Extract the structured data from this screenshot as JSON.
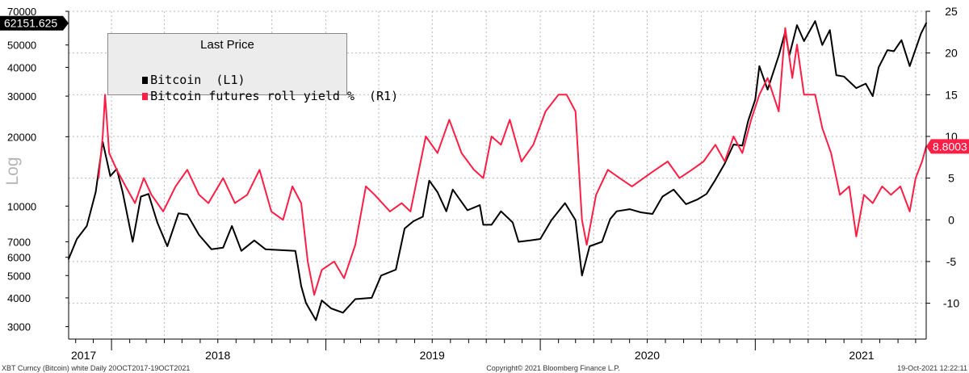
{
  "chart_data": {
    "type": "line",
    "title": "Last Price",
    "legend_position": "top-left",
    "grid": true,
    "y_left": {
      "label": "Log",
      "scale": "log",
      "range": [
        2650,
        70000
      ],
      "ticks": [
        3000,
        4000,
        5000,
        6000,
        7000,
        10000,
        20000,
        30000,
        40000,
        50000,
        70000
      ],
      "last_value_label": "62151.625"
    },
    "y_right": {
      "scale": "linear",
      "range": [
        -14.3,
        25
      ],
      "ticks": [
        -10,
        -5,
        0,
        5,
        10,
        15,
        20,
        25
      ],
      "last_value_label": "8.8003"
    },
    "x_axis": {
      "range": [
        "2017-10-20",
        "2021-10-19"
      ],
      "year_labels": [
        {
          "text": "2017",
          "date": "2017-10-20"
        },
        {
          "text": "2018",
          "date": "2018-07-01"
        },
        {
          "text": "2019",
          "date": "2019-07-01"
        },
        {
          "text": "2020",
          "date": "2020-07-01"
        },
        {
          "text": "2021",
          "date": "2021-07-01"
        }
      ]
    },
    "series": [
      {
        "name": "Bitcoin (L1)",
        "axis": "left",
        "color": "#000000",
        "points": [
          [
            "2017-10-20",
            5900
          ],
          [
            "2017-11-03",
            7200
          ],
          [
            "2017-11-20",
            8200
          ],
          [
            "2017-12-05",
            11500
          ],
          [
            "2017-12-17",
            19000
          ],
          [
            "2017-12-30",
            13500
          ],
          [
            "2018-01-10",
            14500
          ],
          [
            "2018-01-20",
            11500
          ],
          [
            "2018-02-06",
            7000
          ],
          [
            "2018-02-20",
            11000
          ],
          [
            "2018-03-05",
            11300
          ],
          [
            "2018-03-20",
            8500
          ],
          [
            "2018-04-06",
            6700
          ],
          [
            "2018-04-25",
            9300
          ],
          [
            "2018-05-10",
            9200
          ],
          [
            "2018-05-30",
            7500
          ],
          [
            "2018-06-20",
            6500
          ],
          [
            "2018-07-10",
            6600
          ],
          [
            "2018-07-25",
            8200
          ],
          [
            "2018-08-10",
            6400
          ],
          [
            "2018-09-01",
            7100
          ],
          [
            "2018-09-20",
            6500
          ],
          [
            "2018-10-15",
            6450
          ],
          [
            "2018-11-10",
            6400
          ],
          [
            "2018-11-20",
            4500
          ],
          [
            "2018-11-28",
            3800
          ],
          [
            "2018-12-15",
            3200
          ],
          [
            "2018-12-25",
            3900
          ],
          [
            "2019-01-10",
            3600
          ],
          [
            "2019-01-30",
            3450
          ],
          [
            "2019-02-20",
            3950
          ],
          [
            "2019-03-20",
            4000
          ],
          [
            "2019-04-05",
            5000
          ],
          [
            "2019-04-30",
            5300
          ],
          [
            "2019-05-15",
            8000
          ],
          [
            "2019-05-30",
            8600
          ],
          [
            "2019-06-15",
            9000
          ],
          [
            "2019-06-26",
            12900
          ],
          [
            "2019-07-10",
            11500
          ],
          [
            "2019-07-25",
            9500
          ],
          [
            "2019-08-05",
            11800
          ],
          [
            "2019-08-30",
            9600
          ],
          [
            "2019-09-20",
            10100
          ],
          [
            "2019-09-26",
            8300
          ],
          [
            "2019-10-10",
            8300
          ],
          [
            "2019-10-26",
            9500
          ],
          [
            "2019-11-15",
            8500
          ],
          [
            "2019-11-25",
            7000
          ],
          [
            "2019-12-15",
            7100
          ],
          [
            "2020-01-01",
            7200
          ],
          [
            "2020-01-20",
            8700
          ],
          [
            "2020-02-12",
            10300
          ],
          [
            "2020-03-01",
            8700
          ],
          [
            "2020-03-12",
            5000
          ],
          [
            "2020-03-25",
            6700
          ],
          [
            "2020-04-15",
            7000
          ],
          [
            "2020-04-29",
            8800
          ],
          [
            "2020-05-10",
            9500
          ],
          [
            "2020-06-01",
            9700
          ],
          [
            "2020-06-20",
            9400
          ],
          [
            "2020-07-10",
            9250
          ],
          [
            "2020-07-27",
            11000
          ],
          [
            "2020-08-15",
            11800
          ],
          [
            "2020-09-05",
            10200
          ],
          [
            "2020-09-25",
            10700
          ],
          [
            "2020-10-10",
            11300
          ],
          [
            "2020-10-25",
            13000
          ],
          [
            "2020-11-10",
            15300
          ],
          [
            "2020-11-25",
            18500
          ],
          [
            "2020-12-10",
            18300
          ],
          [
            "2020-12-20",
            23500
          ],
          [
            "2021-01-01",
            29000
          ],
          [
            "2021-01-08",
            40500
          ],
          [
            "2021-01-22",
            32000
          ],
          [
            "2021-02-10",
            45000
          ],
          [
            "2021-02-21",
            57000
          ],
          [
            "2021-02-28",
            45000
          ],
          [
            "2021-03-13",
            61000
          ],
          [
            "2021-03-25",
            52000
          ],
          [
            "2021-04-13",
            63500
          ],
          [
            "2021-04-25",
            50000
          ],
          [
            "2021-05-08",
            58000
          ],
          [
            "2021-05-19",
            37000
          ],
          [
            "2021-06-01",
            36500
          ],
          [
            "2021-06-22",
            32500
          ],
          [
            "2021-07-08",
            34000
          ],
          [
            "2021-07-20",
            30000
          ],
          [
            "2021-07-30",
            40000
          ],
          [
            "2021-08-14",
            47500
          ],
          [
            "2021-08-25",
            47000
          ],
          [
            "2021-09-07",
            52500
          ],
          [
            "2021-09-21",
            40500
          ],
          [
            "2021-10-01",
            48000
          ],
          [
            "2021-10-10",
            56000
          ],
          [
            "2021-10-19",
            62151.625
          ]
        ]
      },
      {
        "name": "Bitcoin futures roll yield % (R1)",
        "axis": "right",
        "color": "#ff1e46",
        "points": [
          [
            "2017-12-10",
            5
          ],
          [
            "2017-12-17",
            10
          ],
          [
            "2017-12-21",
            15
          ],
          [
            "2017-12-28",
            8
          ],
          [
            "2018-01-10",
            6
          ],
          [
            "2018-01-25",
            4
          ],
          [
            "2018-02-10",
            2
          ],
          [
            "2018-02-25",
            5
          ],
          [
            "2018-03-10",
            3
          ],
          [
            "2018-03-30",
            1
          ],
          [
            "2018-04-20",
            4
          ],
          [
            "2018-05-10",
            6
          ],
          [
            "2018-05-30",
            3
          ],
          [
            "2018-06-15",
            2
          ],
          [
            "2018-07-10",
            5
          ],
          [
            "2018-07-30",
            2
          ],
          [
            "2018-08-20",
            3
          ],
          [
            "2018-09-10",
            6
          ],
          [
            "2018-09-30",
            1
          ],
          [
            "2018-10-20",
            0
          ],
          [
            "2018-11-05",
            4
          ],
          [
            "2018-11-20",
            2
          ],
          [
            "2018-12-01",
            -5
          ],
          [
            "2018-12-12",
            -9
          ],
          [
            "2018-12-25",
            -6
          ],
          [
            "2019-01-15",
            -5
          ],
          [
            "2019-02-01",
            -7
          ],
          [
            "2019-02-20",
            -3
          ],
          [
            "2019-03-10",
            4
          ],
          [
            "2019-03-25",
            3
          ],
          [
            "2019-04-20",
            1
          ],
          [
            "2019-05-10",
            2
          ],
          [
            "2019-05-25",
            1
          ],
          [
            "2019-06-20",
            10
          ],
          [
            "2019-07-10",
            8
          ],
          [
            "2019-07-30",
            12
          ],
          [
            "2019-08-20",
            8
          ],
          [
            "2019-09-10",
            6
          ],
          [
            "2019-09-26",
            5
          ],
          [
            "2019-10-10",
            10
          ],
          [
            "2019-10-26",
            9
          ],
          [
            "2019-11-10",
            12
          ],
          [
            "2019-11-30",
            7
          ],
          [
            "2019-12-20",
            9
          ],
          [
            "2020-01-10",
            13
          ],
          [
            "2020-02-01",
            15
          ],
          [
            "2020-02-15",
            15
          ],
          [
            "2020-03-01",
            13
          ],
          [
            "2020-03-12",
            0
          ],
          [
            "2020-03-20",
            -3
          ],
          [
            "2020-04-05",
            3
          ],
          [
            "2020-04-25",
            6
          ],
          [
            "2020-05-15",
            5
          ],
          [
            "2020-06-05",
            4
          ],
          [
            "2020-06-25",
            5
          ],
          [
            "2020-07-15",
            6
          ],
          [
            "2020-08-05",
            7
          ],
          [
            "2020-08-25",
            5
          ],
          [
            "2020-09-15",
            6
          ],
          [
            "2020-10-05",
            7
          ],
          [
            "2020-10-25",
            9
          ],
          [
            "2020-11-10",
            7
          ],
          [
            "2020-11-25",
            10
          ],
          [
            "2020-12-10",
            8
          ],
          [
            "2020-12-25",
            12
          ],
          [
            "2021-01-08",
            15
          ],
          [
            "2021-01-22",
            17
          ],
          [
            "2021-02-10",
            13
          ],
          [
            "2021-02-21",
            23
          ],
          [
            "2021-03-05",
            17
          ],
          [
            "2021-03-13",
            21
          ],
          [
            "2021-03-25",
            15
          ],
          [
            "2021-04-13",
            15
          ],
          [
            "2021-04-25",
            11
          ],
          [
            "2021-05-10",
            8
          ],
          [
            "2021-05-25",
            3
          ],
          [
            "2021-06-10",
            4
          ],
          [
            "2021-06-22",
            -2
          ],
          [
            "2021-07-05",
            3
          ],
          [
            "2021-07-20",
            2
          ],
          [
            "2021-08-05",
            4
          ],
          [
            "2021-08-20",
            3
          ],
          [
            "2021-09-05",
            4
          ],
          [
            "2021-09-21",
            1
          ],
          [
            "2021-10-01",
            5
          ],
          [
            "2021-10-12",
            7
          ],
          [
            "2021-10-19",
            8.8003
          ]
        ]
      }
    ]
  },
  "legend": {
    "title": "Last Price",
    "items": [
      {
        "label": "Bitcoin  (L1)",
        "color": "#000000"
      },
      {
        "label": "Bitcoin futures roll yield %  (R1)",
        "color": "#ff1e46"
      }
    ]
  },
  "footer": {
    "left": "XBT Curncy (Bitcoin) white  Daily 20OCT2017-19OCT2021",
    "center": "Copyright© 2021 Bloomberg Finance L.P.",
    "right": "19-Oct-2021 12:22:11"
  }
}
